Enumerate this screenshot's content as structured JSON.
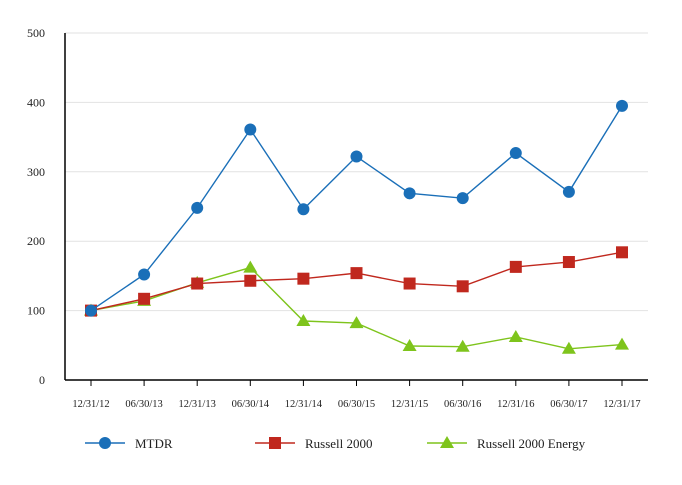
{
  "chart_data": {
    "type": "line",
    "categories": [
      "12/31/12",
      "06/30/13",
      "12/31/13",
      "06/30/14",
      "12/31/14",
      "06/30/15",
      "12/31/15",
      "06/30/16",
      "12/31/16",
      "06/30/17",
      "12/31/17"
    ],
    "ylim": [
      0,
      500
    ],
    "yticks": [
      0,
      100,
      200,
      300,
      400,
      500
    ],
    "grid": true,
    "legend": "bottom",
    "series": [
      {
        "name": "MTDR",
        "color": "#1a6fb8",
        "marker": "circle",
        "values": [
          100,
          152,
          248,
          361,
          246,
          322,
          269,
          262,
          327,
          271,
          395
        ]
      },
      {
        "name": "Russell 2000",
        "color": "#c0281e",
        "marker": "square",
        "values": [
          100,
          117,
          139,
          143,
          146,
          154,
          139,
          135,
          163,
          170,
          184
        ]
      },
      {
        "name": "Russell 2000 Energy",
        "color": "#7ec41c",
        "marker": "triangle",
        "values": [
          100,
          114,
          140,
          162,
          85,
          82,
          49,
          48,
          62,
          45,
          51
        ]
      }
    ]
  }
}
